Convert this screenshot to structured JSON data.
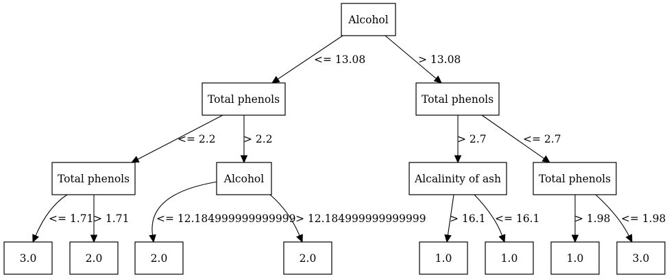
{
  "tree": {
    "nodes": [
      {
        "id": "n0",
        "label": "Alcohol"
      },
      {
        "id": "n1",
        "label": "Total phenols"
      },
      {
        "id": "n2",
        "label": "Total phenols"
      },
      {
        "id": "n3",
        "label": "Total phenols"
      },
      {
        "id": "n4",
        "label": "Alcohol"
      },
      {
        "id": "n5",
        "label": "Alcalinity of ash"
      },
      {
        "id": "n6",
        "label": "Total phenols"
      },
      {
        "id": "n7",
        "label": "3.0"
      },
      {
        "id": "n8",
        "label": "2.0"
      },
      {
        "id": "n9",
        "label": "2.0"
      },
      {
        "id": "n10",
        "label": "2.0"
      },
      {
        "id": "n11",
        "label": "1.0"
      },
      {
        "id": "n12",
        "label": "1.0"
      },
      {
        "id": "n13",
        "label": "1.0"
      },
      {
        "id": "n14",
        "label": "3.0"
      }
    ],
    "edges": [
      {
        "from": "n0",
        "to": "n1",
        "label": "<= 13.08"
      },
      {
        "from": "n0",
        "to": "n2",
        "label": "> 13.08"
      },
      {
        "from": "n1",
        "to": "n3",
        "label": "<= 2.2"
      },
      {
        "from": "n1",
        "to": "n4",
        "label": "> 2.2"
      },
      {
        "from": "n2",
        "to": "n5",
        "label": "> 2.7"
      },
      {
        "from": "n2",
        "to": "n6",
        "label": "<= 2.7"
      },
      {
        "from": "n3",
        "to": "n7",
        "label": "<= 1.71"
      },
      {
        "from": "n3",
        "to": "n8",
        "label": "> 1.71"
      },
      {
        "from": "n4",
        "to": "n9",
        "label": "<= 12.184999999999999"
      },
      {
        "from": "n4",
        "to": "n10",
        "label": "> 12.184999999999999"
      },
      {
        "from": "n5",
        "to": "n11",
        "label": "> 16.1"
      },
      {
        "from": "n5",
        "to": "n12",
        "label": "<= 16.1"
      },
      {
        "from": "n6",
        "to": "n13",
        "label": "> 1.98"
      },
      {
        "from": "n6",
        "to": "n14",
        "label": "<= 1.98"
      }
    ]
  }
}
